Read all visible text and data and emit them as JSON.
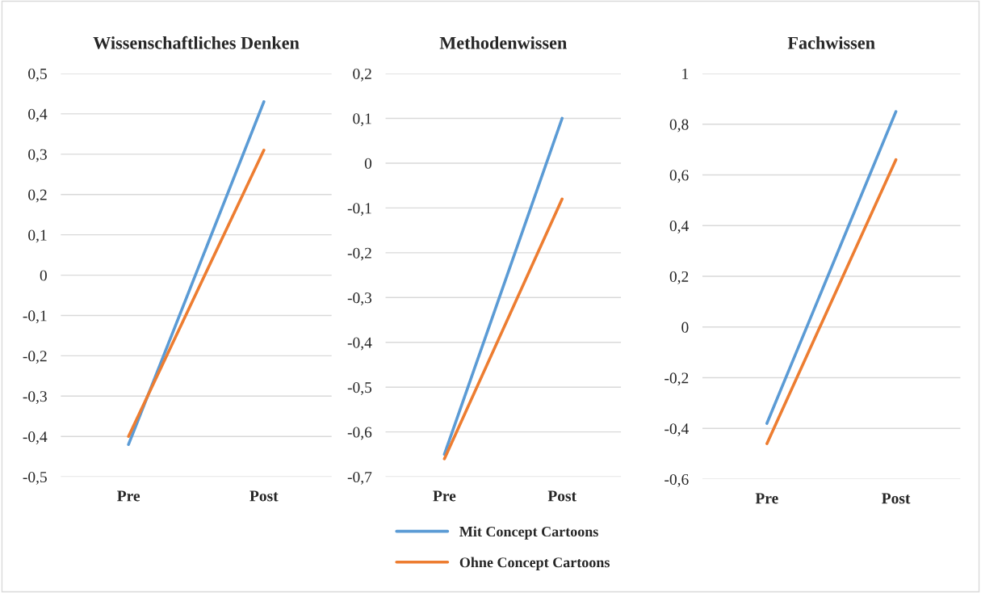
{
  "chart_data": [
    {
      "type": "line",
      "title": "Wissenschaftliches Denken",
      "categories": [
        "Pre",
        "Post"
      ],
      "series": [
        {
          "color": "#5b9bd5",
          "values": [
            -0.42,
            0.43
          ]
        },
        {
          "color": "#ed7d31",
          "values": [
            -0.4,
            0.31
          ]
        }
      ],
      "ylim": [
        -0.5,
        0.5
      ],
      "yticks": [
        {
          "value": -0.5,
          "label": "-0,5"
        },
        {
          "value": -0.4,
          "label": "-0,4"
        },
        {
          "value": -0.3,
          "label": "-0,3"
        },
        {
          "value": -0.2,
          "label": "-0,2"
        },
        {
          "value": -0.1,
          "label": "-0,1"
        },
        0,
        {
          "value": 0.1,
          "label": "0,1"
        },
        {
          "value": 0.2,
          "label": "0,2"
        },
        {
          "value": 0.3,
          "label": "0,3"
        },
        {
          "value": 0.4,
          "label": "0,4"
        },
        {
          "value": 0.5,
          "label": "0,5"
        }
      ],
      "grid": "y",
      "marker": "none",
      "line_style": "solid"
    },
    {
      "type": "line",
      "title": "Methodenwissen",
      "categories": [
        "Pre",
        "Post"
      ],
      "series": [
        {
          "name": "Mit Concept Cartoons",
          "color": "#5b9bd5",
          "values": [
            -0.65,
            0.1
          ]
        },
        {
          "name": "Ohne Concept Cartoons",
          "color": "#ed7d31",
          "values": [
            -0.66,
            -0.08
          ]
        }
      ],
      "ylim": [
        -0.7,
        0.2
      ],
      "yticks": [
        {
          "value": -0.7,
          "label": "-0,7"
        },
        {
          "value": -0.6,
          "label": "-0,6"
        },
        {
          "value": -0.5,
          "label": "-0,5"
        },
        {
          "value": -0.4,
          "label": "-0,4"
        },
        {
          "value": -0.3,
          "label": "-0,3"
        },
        {
          "value": -0.2,
          "label": "-0,2"
        },
        {
          "value": -0.1,
          "label": "-0,1"
        },
        0,
        {
          "value": 0.1,
          "label": "0,1"
        },
        {
          "value": 0.2,
          "label": "0,2"
        }
      ],
      "grid": "y",
      "legend": "bottom",
      "marker": "none",
      "line_style": "solid"
    },
    {
      "type": "line",
      "title": "Fachwissen",
      "categories": [
        "Pre",
        "Post"
      ],
      "series": [
        {
          "color": "#5b9bd5",
          "values": [
            -0.38,
            0.85
          ]
        },
        {
          "color": "#ed7d31",
          "values": [
            -0.46,
            0.66
          ]
        }
      ],
      "ylim": [
        -0.6,
        1
      ],
      "yticks": [
        {
          "value": -0.6,
          "label": "-0,6"
        },
        {
          "value": -0.4,
          "label": "-0,4"
        },
        {
          "value": -0.2,
          "label": "-0,2"
        },
        0,
        {
          "value": 0.2,
          "label": "0,2"
        },
        {
          "value": 0.4,
          "label": "0,4"
        },
        {
          "value": 0.6,
          "label": "0,6"
        },
        {
          "value": 0.8,
          "label": "0,8"
        },
        1
      ],
      "grid": "y",
      "marker": "none",
      "line_style": "solid"
    }
  ]
}
